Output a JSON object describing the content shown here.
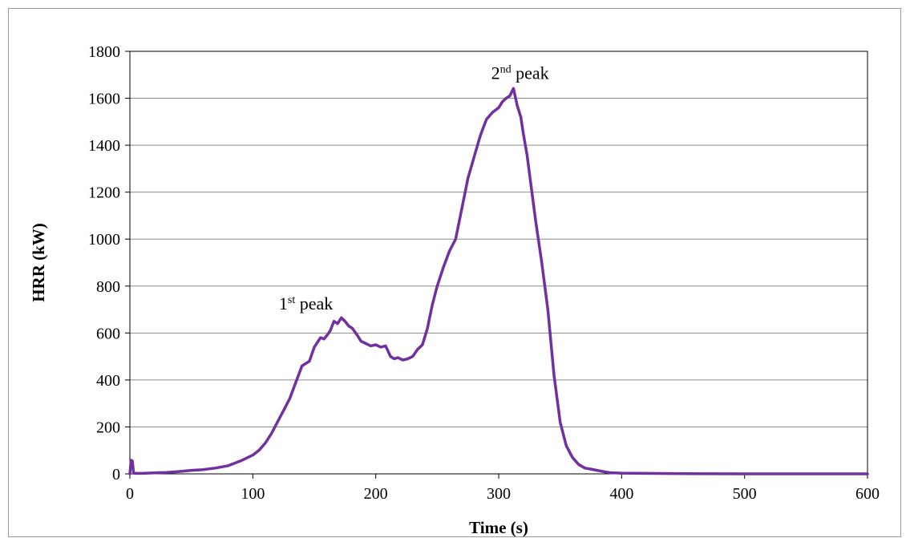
{
  "chart_data": {
    "type": "line",
    "xlabel": "Time (s)",
    "ylabel": "HRR (kW)",
    "xlim": [
      0,
      600
    ],
    "ylim": [
      0,
      1800
    ],
    "x_ticks": [
      0,
      100,
      200,
      300,
      400,
      500,
      600
    ],
    "y_ticks": [
      0,
      200,
      400,
      600,
      800,
      1000,
      1200,
      1400,
      1600,
      1800
    ],
    "grid": "horizontal",
    "legend": "none",
    "line_color": "#7030A0",
    "annotations": [
      {
        "base": "1",
        "sup": "st",
        "text": " peak",
        "x": 163,
        "y": 660
      },
      {
        "base": "2",
        "sup": "nd",
        "text": " peak",
        "x": 318,
        "y": 1642
      }
    ],
    "series": [
      {
        "x": [
          0,
          1,
          2,
          3,
          5,
          10,
          20,
          30,
          40,
          50,
          60,
          70,
          80,
          90,
          100,
          105,
          110,
          115,
          120,
          125,
          130,
          135,
          140,
          143,
          146,
          150,
          155,
          158,
          161,
          163,
          166,
          169,
          172,
          175,
          178,
          181,
          185,
          188,
          192,
          196,
          200,
          204,
          208,
          212,
          215,
          218,
          222,
          226,
          230,
          234,
          238,
          242,
          246,
          250,
          255,
          260,
          265,
          270,
          275,
          280,
          285,
          290,
          295,
          300,
          303,
          306,
          309,
          312,
          315,
          318,
          320,
          323,
          326,
          330,
          335,
          340,
          345,
          350,
          355,
          360,
          365,
          370,
          375,
          380,
          385,
          390,
          400,
          420,
          450,
          500,
          550,
          600
        ],
        "y": [
          0,
          58,
          55,
          3,
          2,
          2,
          4,
          6,
          10,
          15,
          18,
          25,
          35,
          55,
          80,
          100,
          130,
          170,
          220,
          270,
          320,
          390,
          460,
          470,
          480,
          540,
          580,
          575,
          595,
          610,
          650,
          640,
          665,
          650,
          630,
          620,
          590,
          565,
          555,
          545,
          550,
          540,
          545,
          500,
          490,
          495,
          485,
          490,
          500,
          530,
          550,
          620,
          720,
          800,
          880,
          950,
          1000,
          1130,
          1260,
          1350,
          1440,
          1510,
          1540,
          1560,
          1585,
          1600,
          1610,
          1642,
          1570,
          1520,
          1450,
          1360,
          1240,
          1080,
          900,
          700,
          420,
          220,
          120,
          70,
          40,
          25,
          20,
          15,
          10,
          5,
          3,
          2,
          1,
          0,
          0,
          0
        ]
      }
    ]
  }
}
